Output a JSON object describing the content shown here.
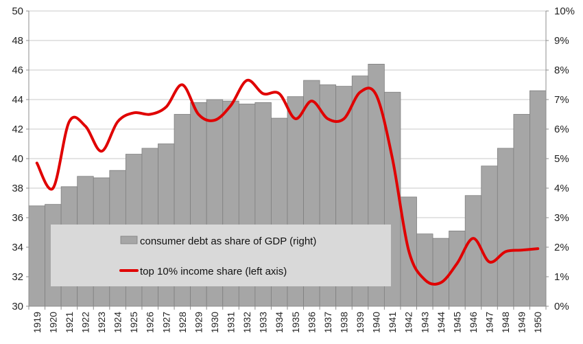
{
  "chart_data": {
    "type": "bar+line",
    "title": "",
    "categories": [
      "1919",
      "1920",
      "1921",
      "1922",
      "1923",
      "1924",
      "1925",
      "1926",
      "1927",
      "1928",
      "1929",
      "1930",
      "1931",
      "1932",
      "1933",
      "1934",
      "1935",
      "1936",
      "1937",
      "1938",
      "1939",
      "1940",
      "1941",
      "1942",
      "1943",
      "1944",
      "1945",
      "1946",
      "1947",
      "1948",
      "1949",
      "1950"
    ],
    "series": [
      {
        "name": "consumer debt as share of GDP (right)",
        "type": "bar",
        "axis": "right",
        "color": "#a6a6a6",
        "values": [
          3.4,
          3.45,
          4.05,
          4.4,
          4.35,
          4.6,
          5.15,
          5.35,
          5.5,
          6.5,
          6.9,
          7.0,
          6.95,
          6.85,
          6.9,
          6.37,
          7.1,
          7.65,
          7.5,
          7.45,
          7.8,
          8.2,
          7.25,
          3.7,
          2.45,
          2.3,
          2.55,
          3.75,
          4.75,
          5.35,
          6.5,
          7.3
        ]
      },
      {
        "name": "top 10% income share (left axis)",
        "type": "line",
        "axis": "left",
        "color": "#e00000",
        "values": [
          39.7,
          38.0,
          42.5,
          42.2,
          40.5,
          42.5,
          43.1,
          43.0,
          43.5,
          45.0,
          43.0,
          42.6,
          43.6,
          45.3,
          44.4,
          44.4,
          42.7,
          43.9,
          42.7,
          42.7,
          44.5,
          44.3,
          40.0,
          33.8,
          31.8,
          31.6,
          32.9,
          34.6,
          33.0,
          33.7,
          33.8,
          33.9
        ]
      }
    ],
    "y_left": {
      "ylim": [
        30,
        50
      ],
      "ticks": [
        "30",
        "32",
        "34",
        "36",
        "38",
        "40",
        "42",
        "44",
        "46",
        "48",
        "50"
      ]
    },
    "y_right": {
      "ylim": [
        0,
        10
      ],
      "ticks": [
        "0%",
        "1%",
        "2%",
        "3%",
        "4%",
        "5%",
        "6%",
        "7%",
        "8%",
        "9%",
        "10%"
      ]
    },
    "grid": "horizontal",
    "legend": {
      "placement": "lower-left inside plot",
      "items": [
        "consumer debt as share of GDP (right)",
        "top 10% income share (left axis)"
      ]
    }
  }
}
